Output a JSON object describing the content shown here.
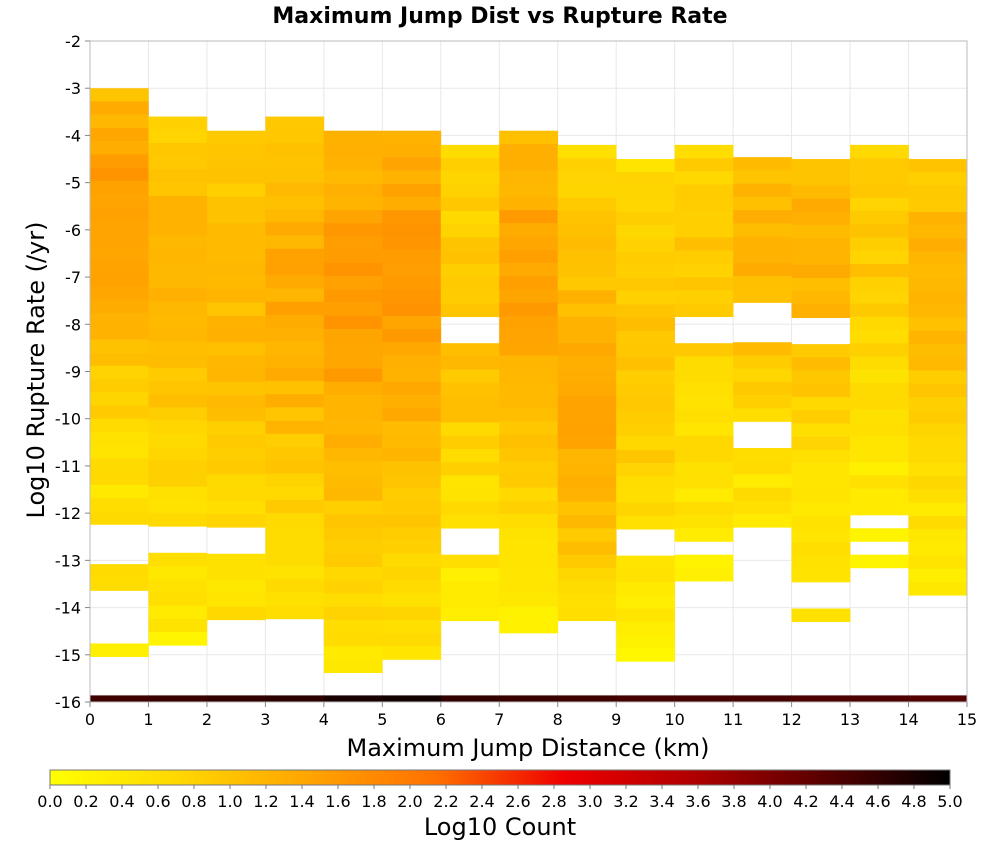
{
  "chart_data": {
    "type": "heatmap",
    "title": "Maximum Jump Dist vs Rupture Rate",
    "xlabel": "Maximum Jump Distance (km)",
    "ylabel": "Log10 Rupture Rate (/yr)",
    "xlim": [
      0,
      15
    ],
    "ylim": [
      -16,
      -2
    ],
    "x_ticks": [
      "0",
      "1",
      "2",
      "3",
      "4",
      "5",
      "6",
      "7",
      "8",
      "9",
      "10",
      "11",
      "12",
      "13",
      "14",
      "15"
    ],
    "y_ticks": [
      "-2",
      "-3",
      "-4",
      "-5",
      "-6",
      "-7",
      "-8",
      "-9",
      "-10",
      "-11",
      "-12",
      "-13",
      "-14",
      "-15",
      "-16"
    ],
    "x_bin_width": 1,
    "y_bin_height": 0.28,
    "colorbar": {
      "label": "Log10 Count",
      "range": [
        0,
        5
      ],
      "ticks": [
        "0.0",
        "0.2",
        "0.4",
        "0.6",
        "0.8",
        "1.0",
        "1.2",
        "1.4",
        "1.6",
        "1.8",
        "2.0",
        "2.2",
        "2.4",
        "2.6",
        "2.8",
        "3.0",
        "3.2",
        "3.4",
        "3.6",
        "3.8",
        "4.0",
        "4.2",
        "4.4",
        "4.6",
        "4.8",
        "5.0"
      ],
      "stops": [
        "#ffff00",
        "#ffd700",
        "#ffa500",
        "#ff7000",
        "#ee0000",
        "#b00000",
        "#5a0000",
        "#000000"
      ]
    },
    "columns": [
      {
        "x": 0,
        "y_top": -3.0,
        "base": 0.5,
        "peak": 1.58,
        "peak_y": -5.6,
        "spread": 3.5
      },
      {
        "x": 1,
        "y_top": -3.6,
        "base": 0.5,
        "peak": 1.2,
        "peak_y": -7.0,
        "spread": 4.0
      },
      {
        "x": 2,
        "y_top": -3.9,
        "base": 0.5,
        "peak": 1.15,
        "peak_y": -7.5,
        "spread": 4.0
      },
      {
        "x": 3,
        "y_top": -3.6,
        "base": 0.5,
        "peak": 1.35,
        "peak_y": -7.5,
        "spread": 4.0
      },
      {
        "x": 4,
        "y_top": -3.9,
        "base": 0.6,
        "peak": 1.55,
        "peak_y": -7.5,
        "spread": 4.5
      },
      {
        "x": 5,
        "y_top": -3.9,
        "base": 0.6,
        "peak": 1.55,
        "peak_y": -7.0,
        "spread": 4.5
      },
      {
        "x": 6,
        "y_top": -4.2,
        "base": 0.4,
        "peak": 1.05,
        "peak_y": -8.0,
        "spread": 3.5
      },
      {
        "x": 7,
        "y_top": -3.9,
        "base": 0.5,
        "peak": 1.5,
        "peak_y": -7.0,
        "spread": 4.0
      },
      {
        "x": 8,
        "y_top": -4.2,
        "base": 0.5,
        "peak": 1.35,
        "peak_y": -9.5,
        "spread": 4.0
      },
      {
        "x": 9,
        "y_top": -4.5,
        "base": 0.4,
        "peak": 1.0,
        "peak_y": -8.5,
        "spread": 3.5
      },
      {
        "x": 10,
        "y_top": -4.2,
        "base": 0.4,
        "peak": 0.95,
        "peak_y": -6.5,
        "spread": 3.5
      },
      {
        "x": 11,
        "y_top": -3.9,
        "base": 0.4,
        "peak": 1.2,
        "peak_y": -6.5,
        "spread": 3.5
      },
      {
        "x": 12,
        "y_top": -4.5,
        "base": 0.4,
        "peak": 1.25,
        "peak_y": -6.5,
        "spread": 3.5
      },
      {
        "x": 13,
        "y_top": -4.2,
        "base": 0.3,
        "peak": 0.9,
        "peak_y": -6.5,
        "spread": 3.5
      },
      {
        "x": 14,
        "y_top": -4.5,
        "base": 0.4,
        "peak": 1.2,
        "peak_y": -7.0,
        "spread": 3.5
      }
    ],
    "column_bottoms": [
      -15.3,
      -15.0,
      -15.9,
      -15.3,
      -15.6,
      -15.3,
      -15.6,
      -14.7,
      -14.4,
      -15.3,
      -13.5,
      -13.5,
      -15.3,
      -13.2,
      -14.4
    ],
    "gaps": [
      {
        "x": 0,
        "y_from": -13.7,
        "y_to": -14.0
      },
      {
        "x": 0,
        "y_from": -14.3,
        "y_to": -14.7
      },
      {
        "x": 0,
        "y_from": -12.5,
        "y_to": -12.8
      },
      {
        "x": 1,
        "y_from": -12.5,
        "y_to": -12.6
      },
      {
        "x": 2,
        "y_from": -12.5,
        "y_to": -12.7
      },
      {
        "x": 2,
        "y_from": -14.5,
        "y_to": -15.6
      },
      {
        "x": 3,
        "y_from": -14.5,
        "y_to": -15.0
      },
      {
        "x": 6,
        "y_from": -8.1,
        "y_to": -8.3
      },
      {
        "x": 6,
        "y_from": -12.5,
        "y_to": -12.7
      },
      {
        "x": 6,
        "y_from": -14.3,
        "y_to": -15.3
      },
      {
        "x": 9,
        "y_from": -12.5,
        "y_to": -12.7
      },
      {
        "x": 10,
        "y_from": -8.1,
        "y_to": -8.3
      },
      {
        "x": 10,
        "y_from": -12.6,
        "y_to": -12.8
      },
      {
        "x": 11,
        "y_from": -4.1,
        "y_to": -4.4
      },
      {
        "x": 11,
        "y_from": -7.8,
        "y_to": -8.3
      },
      {
        "x": 11,
        "y_from": -10.2,
        "y_to": -10.5
      },
      {
        "x": 11,
        "y_from": -12.5,
        "y_to": -13.5
      },
      {
        "x": 12,
        "y_from": -8.1,
        "y_to": -8.3
      },
      {
        "x": 12,
        "y_from": -13.6,
        "y_to": -14.0
      },
      {
        "x": 12,
        "y_from": -14.4,
        "y_to": -14.6
      },
      {
        "x": 12,
        "y_from": -14.9,
        "y_to": -15.0
      },
      {
        "x": 13,
        "y_from": -12.1,
        "y_to": -12.3
      },
      {
        "x": 13,
        "y_from": -12.6,
        "y_to": -12.8
      },
      {
        "x": 14,
        "y_from": -13.9,
        "y_to": -14.1
      }
    ],
    "bottom_row": {
      "y_from": -16.0,
      "y_to": -15.86,
      "values": [
        4.5,
        4.55,
        4.6,
        4.65,
        4.8,
        4.85,
        4.6,
        4.55,
        4.5,
        4.45,
        4.45,
        4.45,
        4.4,
        4.4,
        4.35
      ]
    }
  }
}
